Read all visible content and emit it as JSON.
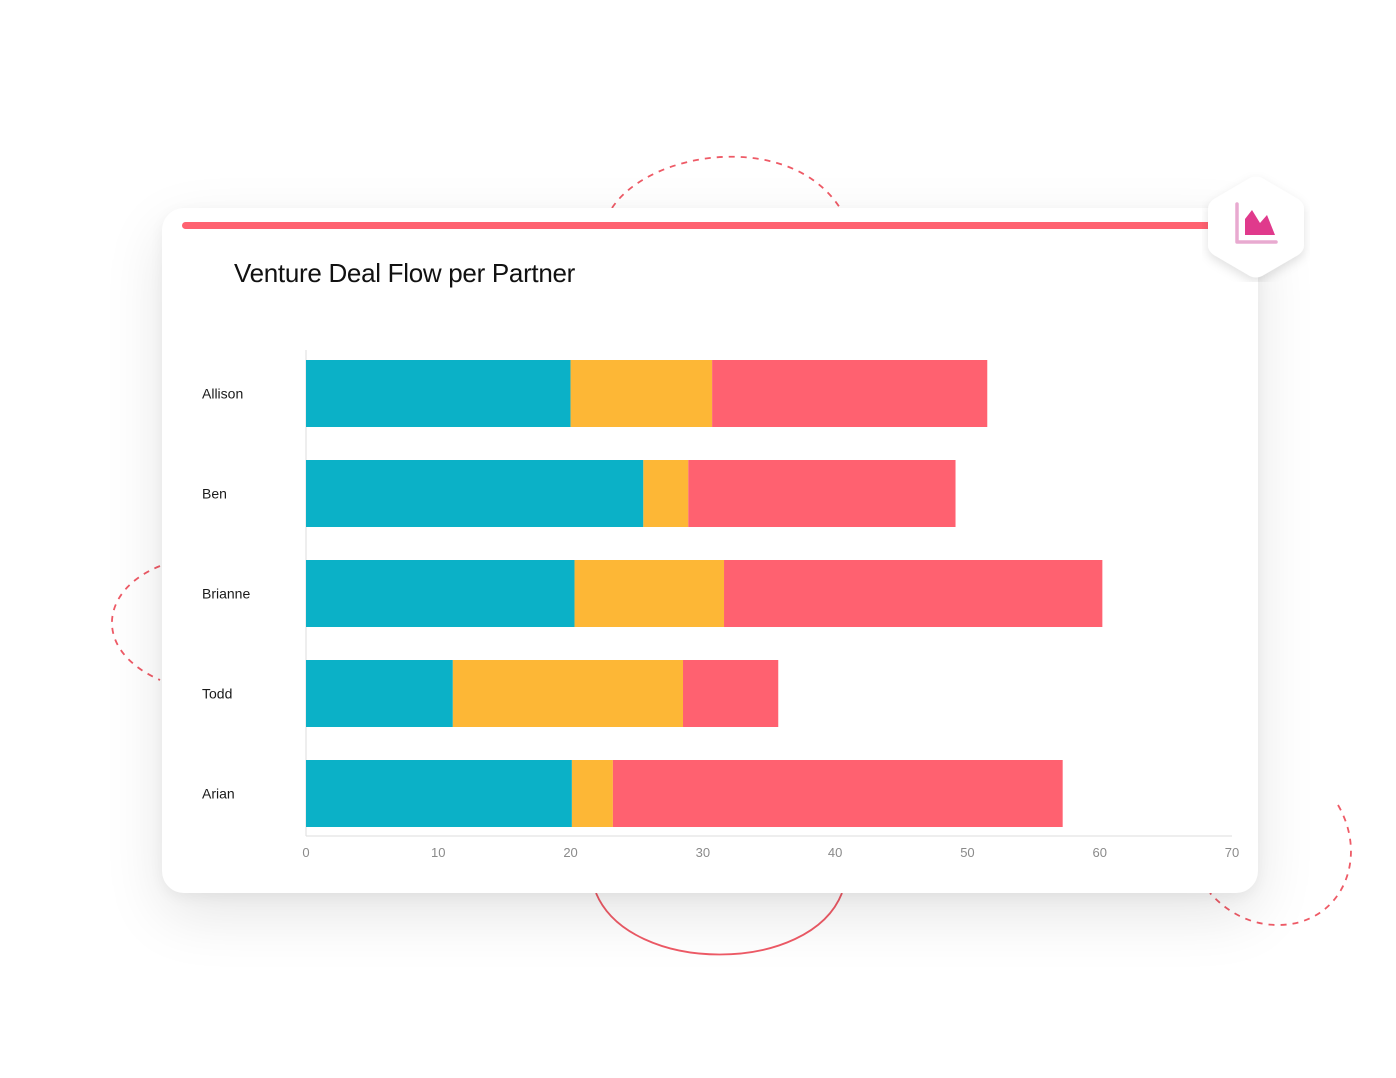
{
  "title": "Venture Deal Flow per Partner",
  "colors": {
    "accent": "#FF6170",
    "teal": "#0BB1C7",
    "yellow": "#FDB736",
    "coral": "#FF6170",
    "icon_pink": "#E03A8C",
    "icon_light": "#E8AAD0"
  },
  "badge": {
    "icon": "area-chart-icon"
  },
  "chart_data": {
    "type": "bar",
    "orientation": "horizontal",
    "stacked": true,
    "categories": [
      "Allison",
      "Ben",
      "Brianne",
      "Todd",
      "Arian"
    ],
    "series": [
      {
        "color": "#0BB1C7",
        "values": [
          20,
          25.5,
          20.3,
          11.1,
          20.1
        ]
      },
      {
        "color": "#FDB736",
        "values": [
          10.7,
          3.4,
          11.3,
          17.4,
          3.1
        ]
      },
      {
        "color": "#FF6170",
        "values": [
          20.8,
          20.2,
          28.6,
          7.2,
          34
        ]
      }
    ],
    "xticks": [
      "0",
      "10",
      "20",
      "30",
      "40",
      "50",
      "60",
      "70"
    ],
    "xlim": [
      0,
      70
    ],
    "xlabel": "",
    "ylabel": "",
    "grid": false,
    "legend": "none"
  }
}
